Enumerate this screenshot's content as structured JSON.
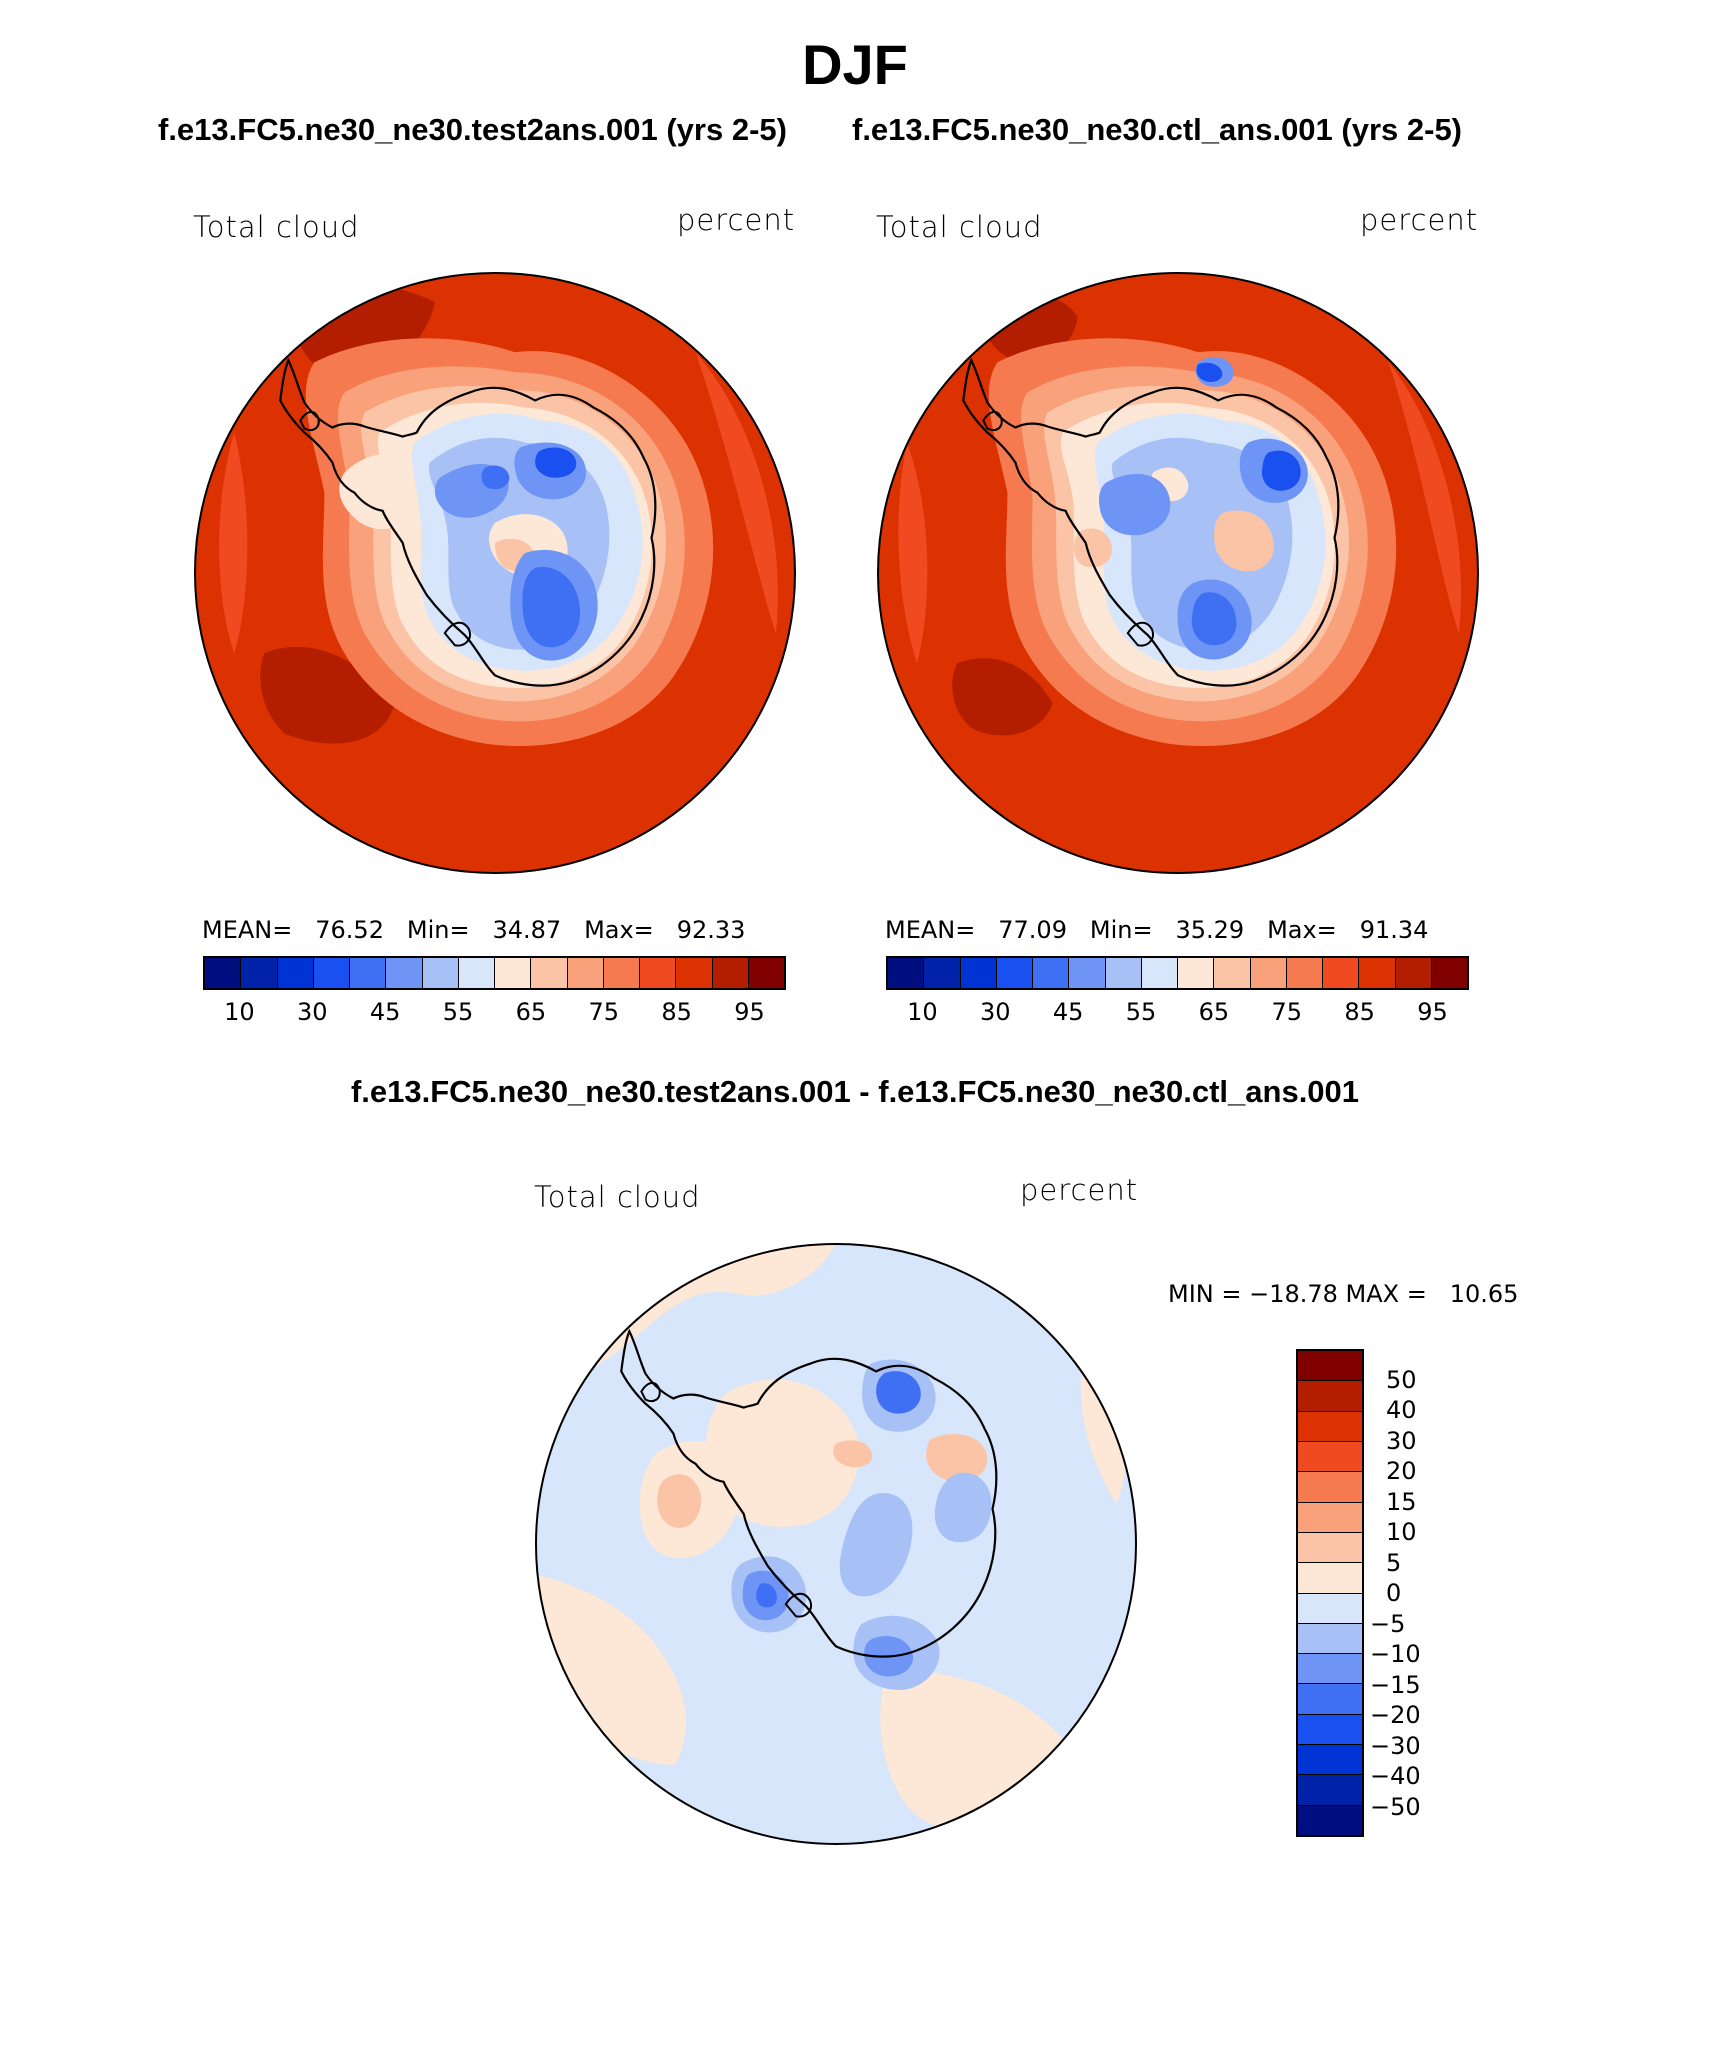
{
  "page_title": "DJF",
  "case1_title": "f.e13.FC5.ne30_ne30.test2ans.001 (yrs 2-5)",
  "case2_title": "f.e13.FC5.ne30_ne30.ctl_ans.001 (yrs 2-5)",
  "diff_title": "f.e13.FC5.ne30_ne30.test2ans.001 - f.e13.FC5.ne30_ne30.ctl_ans.001",
  "panel1": {
    "variable": "Total cloud",
    "units": "percent",
    "mean_label": "MEAN=",
    "mean": "76.52",
    "min_label": "Min=",
    "min": "34.87",
    "max_label": "Max=",
    "max": "92.33"
  },
  "panel2": {
    "variable": "Total cloud",
    "units": "percent",
    "mean_label": "MEAN=",
    "mean": "77.09",
    "min_label": "Min=",
    "min": "35.29",
    "max_label": "Max=",
    "max": "91.34"
  },
  "panel3": {
    "variable": "Total cloud",
    "units": "percent",
    "minmax_text": "MIN = −18.78 MAX =   10.65"
  },
  "colorbar_abs": {
    "colors": [
      "#000f80",
      "#0022a8",
      "#0033d4",
      "#1a4ff0",
      "#3f6ff2",
      "#6e95f5",
      "#a7c1f7",
      "#d7e6fb",
      "#fde7d6",
      "#fbc4a6",
      "#f8a17b",
      "#f57a50",
      "#f04a21",
      "#dc3100",
      "#b31e00",
      "#800000"
    ],
    "tick_labels": [
      "10",
      "30",
      "45",
      "55",
      "65",
      "75",
      "85",
      "95"
    ]
  },
  "colorbar_diff": {
    "colors": [
      "#800000",
      "#b31e00",
      "#dc3100",
      "#f04a21",
      "#f57a50",
      "#f8a17b",
      "#fbc4a6",
      "#fde7d6",
      "#d7e6fb",
      "#a7c1f7",
      "#6e95f5",
      "#3f6ff2",
      "#1a4ff0",
      "#0033d4",
      "#0022a8",
      "#000f80"
    ],
    "tick_labels": [
      "50",
      "40",
      "30",
      "20",
      "15",
      "10",
      "5",
      "0",
      "−5",
      "−10",
      "−15",
      "−20",
      "−30",
      "−40",
      "−50"
    ]
  }
}
